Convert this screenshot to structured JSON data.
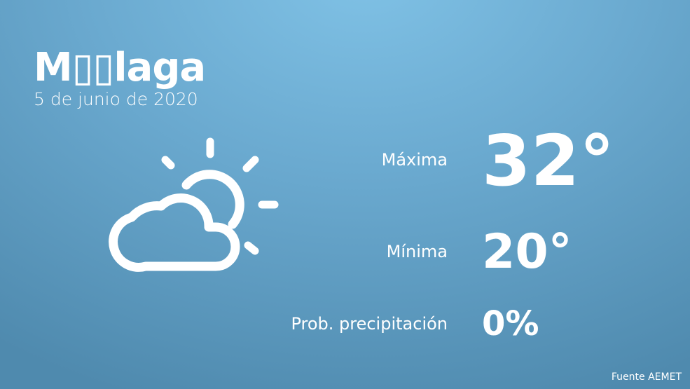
{
  "city": "M▯▯laga",
  "date": "5 de junio de 2020",
  "weather_icon": "partly-cloudy-icon",
  "stats": {
    "max_label": "Máxima",
    "max_value": "32°",
    "min_label": "Mínima",
    "min_value": "20°",
    "precip_label": "Prob. precipitación",
    "precip_value": "0%"
  },
  "source": "Fuente AEMET"
}
